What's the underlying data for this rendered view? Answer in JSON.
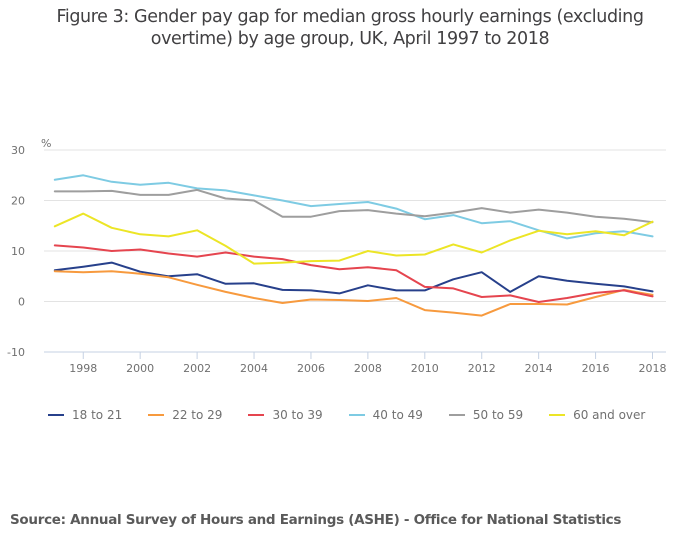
{
  "title_line1": "Figure 3: Gender pay gap for median gross hourly earnings (excluding",
  "title_line2": "overtime) by age group, UK, April 1997 to 2018",
  "source": "Source: Annual Survey of Hours and Earnings (ASHE) - Office for National Statistics",
  "chart_data": {
    "type": "line",
    "title": "Figure 3: Gender pay gap for median gross hourly earnings (excluding overtime) by age group, UK, April 1997 to 2018",
    "xlabel": "",
    "ylabel": "%",
    "x": [
      1997,
      1998,
      1999,
      2000,
      2001,
      2002,
      2003,
      2004,
      2005,
      2006,
      2007,
      2008,
      2009,
      2010,
      2011,
      2012,
      2013,
      2014,
      2015,
      2016,
      2017,
      2018
    ],
    "xticks": [
      "1998",
      "2000",
      "2002",
      "2004",
      "2006",
      "2008",
      "2010",
      "2012",
      "2014",
      "2016",
      "2018"
    ],
    "xtick_values": [
      1998,
      2000,
      2002,
      2004,
      2006,
      2008,
      2010,
      2012,
      2014,
      2016,
      2018
    ],
    "yticks": [
      "30",
      "20",
      "10",
      "0",
      "-10"
    ],
    "ytick_values": [
      30,
      20,
      10,
      0,
      -10
    ],
    "ylim": [
      -10,
      30
    ],
    "xlim": [
      1997,
      2018
    ],
    "grid": "horizontal",
    "legend_position": "bottom",
    "series": [
      {
        "name": "18 to 21",
        "color": "#27408b",
        "values": [
          6.2,
          6.9,
          7.7,
          5.9,
          5.0,
          5.4,
          3.5,
          3.6,
          2.3,
          2.2,
          1.6,
          3.2,
          2.2,
          2.2,
          4.4,
          5.8,
          1.9,
          5.0,
          4.1,
          3.5,
          3.0,
          2.0
        ]
      },
      {
        "name": "22 to 29",
        "color": "#f79a3e",
        "values": [
          6.0,
          5.8,
          6.0,
          5.5,
          4.8,
          3.3,
          1.9,
          0.7,
          -0.3,
          0.4,
          0.3,
          0.1,
          0.7,
          -1.7,
          -2.2,
          -2.8,
          -0.5,
          -0.5,
          -0.6,
          0.9,
          2.3,
          1.3
        ]
      },
      {
        "name": "30 to 39",
        "color": "#e5454f",
        "values": [
          11.1,
          10.7,
          10.0,
          10.3,
          9.5,
          8.9,
          9.7,
          8.9,
          8.4,
          7.2,
          6.4,
          6.8,
          6.2,
          2.9,
          2.6,
          0.9,
          1.2,
          -0.1,
          0.7,
          1.7,
          2.2,
          1.0
        ]
      },
      {
        "name": "40 to 49",
        "color": "#7ecbe3",
        "values": [
          24.1,
          25.0,
          23.7,
          23.1,
          23.5,
          22.4,
          22.0,
          21.0,
          20.0,
          18.9,
          19.3,
          19.7,
          18.4,
          16.3,
          17.1,
          15.5,
          15.9,
          14.1,
          12.5,
          13.5,
          13.9,
          12.9
        ]
      },
      {
        "name": "50 to 59",
        "color": "#9e9e9e",
        "values": [
          21.8,
          21.8,
          21.9,
          21.1,
          21.1,
          22.1,
          20.4,
          20.0,
          16.8,
          16.8,
          17.9,
          18.1,
          17.4,
          16.9,
          17.6,
          18.5,
          17.6,
          18.2,
          17.6,
          16.8,
          16.4,
          15.7
        ]
      },
      {
        "name": "60 and over",
        "color": "#ece526",
        "values": [
          14.9,
          17.4,
          14.6,
          13.3,
          12.9,
          14.1,
          11.0,
          7.5,
          7.7,
          8.0,
          8.1,
          10.0,
          9.1,
          9.3,
          11.3,
          9.7,
          12.1,
          14.0,
          13.3,
          13.9,
          13.1,
          15.8
        ]
      }
    ]
  }
}
